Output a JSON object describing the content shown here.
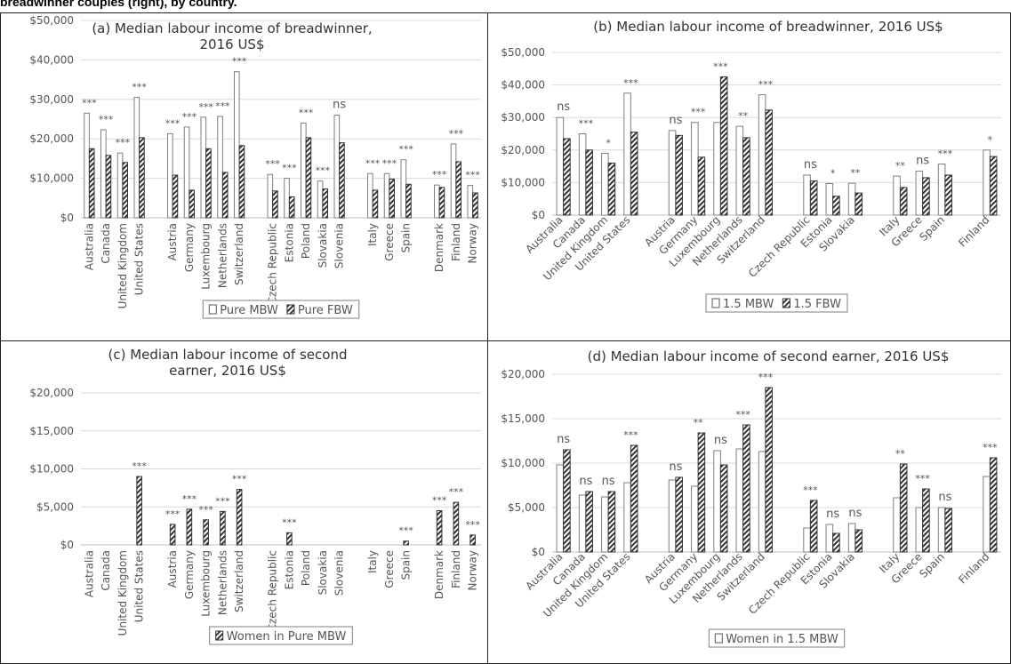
{
  "header": "breadwinner couples (right), by country.",
  "chart_data": [
    {
      "type": "bar",
      "title": "(a) Median labour income of breadwinner, 2016 US$",
      "categories": [
        "Australia",
        "Canada",
        "United Kingdom",
        "United States",
        null,
        "Austria",
        "Germany",
        "Luxembourg",
        "Netherlands",
        "Switzerland",
        null,
        "Czech Republic",
        "Estonia",
        "Poland",
        "Slovakia",
        "Slovenia",
        null,
        "Italy",
        "Greece",
        "Spain",
        null,
        "Denmark",
        "Finland",
        "Norway"
      ],
      "series": [
        {
          "name": "Pure MBW",
          "color": "#ffffff",
          "pattern": "solid",
          "values": [
            26500,
            22300,
            16400,
            30500,
            null,
            21300,
            23000,
            25500,
            25700,
            37000,
            null,
            11000,
            10000,
            24000,
            9300,
            26000,
            null,
            11200,
            11200,
            14700,
            null,
            8300,
            18700,
            8200
          ]
        },
        {
          "name": "Pure FBW",
          "color": "#333333",
          "pattern": "hatch",
          "values": [
            17500,
            15800,
            14000,
            20300,
            null,
            10800,
            7000,
            17500,
            11500,
            18300,
            null,
            6800,
            5300,
            20300,
            7300,
            19000,
            null,
            7000,
            9800,
            8500,
            null,
            7700,
            14200,
            6300
          ]
        }
      ],
      "annotations": [
        "***",
        "***",
        "***",
        "***",
        null,
        "***",
        "***",
        "***",
        "***",
        "***",
        null,
        "***",
        "***",
        "***",
        "***",
        "ns",
        null,
        "***",
        "***",
        "***",
        null,
        "***",
        "***",
        "***"
      ],
      "label_rotation": -90,
      "ylim": [
        0,
        50000
      ],
      "yticks": [
        {
          "value": 0,
          "label": "$0"
        },
        {
          "value": 10000,
          "label": "$10,000"
        },
        {
          "value": 20000,
          "label": "$20,000"
        },
        {
          "value": 30000,
          "label": "$30,000"
        },
        {
          "value": 40000,
          "label": "$40,000"
        },
        {
          "value": 50000,
          "label": "$50,000"
        }
      ],
      "grid": true
    },
    {
      "type": "bar",
      "title": "(b) Median labour income of breadwinner, 2016 US$",
      "categories": [
        "Australia",
        "Canada",
        "United Kingdom",
        "United States",
        null,
        "Austria",
        "Germany",
        "Luxembourg",
        "Netherlands",
        "Switzerland",
        null,
        "Czech Republic",
        "Estonia",
        "Slovakia",
        null,
        "Italy",
        "Greece",
        "Spain",
        null,
        "Finland"
      ],
      "series": [
        {
          "name": "1.5 MBW",
          "color": "#ffffff",
          "pattern": "solid",
          "values": [
            30000,
            25000,
            19000,
            37500,
            null,
            26000,
            28500,
            28500,
            27300,
            37000,
            null,
            12300,
            9700,
            9800,
            null,
            12000,
            13500,
            15700,
            null,
            20000
          ]
        },
        {
          "name": "1.5 FBW",
          "color": "#333333",
          "pattern": "hatch",
          "values": [
            23500,
            20000,
            16000,
            25500,
            null,
            24500,
            17800,
            42500,
            23800,
            32300,
            null,
            10500,
            5800,
            6800,
            null,
            8500,
            11500,
            12300,
            null,
            18000
          ]
        }
      ],
      "annotations": [
        "ns",
        "***",
        "*",
        "***",
        null,
        "ns",
        "***",
        "***",
        "**",
        "***",
        null,
        "ns",
        "*",
        "**",
        null,
        "**",
        "ns",
        "***",
        null,
        "*"
      ],
      "label_rotation": -45,
      "ylim": [
        0,
        50000
      ],
      "yticks": [
        {
          "value": 0,
          "label": "$0"
        },
        {
          "value": 10000,
          "label": "$10,000"
        },
        {
          "value": 20000,
          "label": "$20,000"
        },
        {
          "value": 30000,
          "label": "$30,000"
        },
        {
          "value": 40000,
          "label": "$40,000"
        },
        {
          "value": 50000,
          "label": "$50,000"
        }
      ],
      "grid": true
    },
    {
      "type": "bar",
      "title": "(c) Median labour income of second earner, 2016 US$",
      "categories": [
        "Australia",
        "Canada",
        "United Kingdom",
        "United States",
        null,
        "Austria",
        "Germany",
        "Luxembourg",
        "Netherlands",
        "Switzerland",
        null,
        "Czech Republic",
        "Estonia",
        "Poland",
        "Slovakia",
        "Slovenia",
        null,
        "Italy",
        "Greece",
        "Spain",
        null,
        "Denmark",
        "Finland",
        "Norway"
      ],
      "series": [
        {
          "name": "Women in Pure MBW",
          "color": "#333333",
          "pattern": "hatch",
          "values": [
            null,
            null,
            null,
            9000,
            null,
            2700,
            4700,
            3300,
            4400,
            7300,
            null,
            null,
            1600,
            null,
            null,
            null,
            null,
            null,
            null,
            500,
            null,
            4500,
            5600,
            1300
          ]
        }
      ],
      "annotations": [
        null,
        null,
        null,
        "***",
        null,
        "***",
        "***",
        "***",
        "***",
        "***",
        null,
        null,
        "***",
        null,
        null,
        null,
        null,
        null,
        null,
        "***",
        null,
        "***",
        "***",
        "***"
      ],
      "label_rotation": -90,
      "ylim": [
        0,
        20000
      ],
      "yticks": [
        {
          "value": 0,
          "label": "$0"
        },
        {
          "value": 5000,
          "label": "$5,000"
        },
        {
          "value": 10000,
          "label": "$10,000"
        },
        {
          "value": 15000,
          "label": "$15,000"
        },
        {
          "value": 20000,
          "label": "$20,000"
        }
      ],
      "grid": true
    },
    {
      "type": "bar",
      "title": "(d) Median labour income of second earner, 2016 US$",
      "categories": [
        "Australia",
        "Canada",
        "United Kingdom",
        "United States",
        null,
        "Austria",
        "Germany",
        "Luxembourg",
        "Netherlands",
        "Switzerland",
        null,
        "Czech Republic",
        "Estonia",
        "Slovakia",
        null,
        "Italy",
        "Greece",
        "Spain",
        null,
        "Finland"
      ],
      "series": [
        {
          "name": "Women in 1.5 MBW",
          "color": "#ffffff",
          "pattern": "solid",
          "values": [
            9800,
            6400,
            6200,
            7800,
            null,
            8100,
            7400,
            11400,
            11600,
            11300,
            null,
            2700,
            3100,
            3200,
            null,
            6100,
            5000,
            5000,
            null,
            8500
          ]
        },
        {
          "name": null,
          "color": "#333333",
          "pattern": "hatch",
          "values": [
            11500,
            6800,
            6800,
            12000,
            null,
            8400,
            13400,
            9800,
            14300,
            18500,
            null,
            5800,
            2100,
            2500,
            null,
            9900,
            7100,
            4900,
            null,
            10600
          ]
        }
      ],
      "annotations": [
        "ns",
        "ns",
        "ns",
        "***",
        null,
        "ns",
        "**",
        "ns",
        "***",
        "***",
        null,
        "***",
        "ns",
        "ns",
        null,
        "**",
        "***",
        "ns",
        null,
        "***"
      ],
      "label_rotation": -45,
      "ylim": [
        0,
        20000
      ],
      "yticks": [
        {
          "value": 0,
          "label": "$0"
        },
        {
          "value": 5000,
          "label": "$5,000"
        },
        {
          "value": 10000,
          "label": "$10,000"
        },
        {
          "value": 15000,
          "label": "$15,000"
        },
        {
          "value": 20000,
          "label": "$20,000"
        }
      ],
      "grid": true
    }
  ]
}
